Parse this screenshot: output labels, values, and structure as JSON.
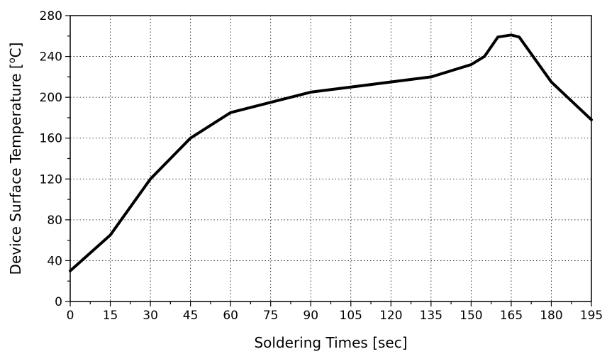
{
  "chart_data": {
    "type": "line",
    "xlabel": "Soldering Times [sec]",
    "ylabel_parts": [
      "Device Surface Temperature [",
      "o",
      "C]"
    ],
    "xlim": [
      0,
      195
    ],
    "ylim": [
      0,
      280
    ],
    "xticks": [
      0,
      15,
      30,
      45,
      60,
      75,
      90,
      105,
      120,
      135,
      150,
      165,
      180,
      195
    ],
    "yticks": [
      0,
      40,
      80,
      120,
      160,
      200,
      240,
      280
    ],
    "grid": true,
    "series": [
      {
        "x": [
          0,
          15,
          30,
          45,
          60,
          90,
          135,
          150,
          155,
          160,
          165,
          168,
          180,
          195
        ],
        "y": [
          30,
          65,
          120,
          160,
          185,
          205,
          220,
          232,
          240,
          259,
          261,
          259,
          215,
          178
        ]
      }
    ]
  }
}
